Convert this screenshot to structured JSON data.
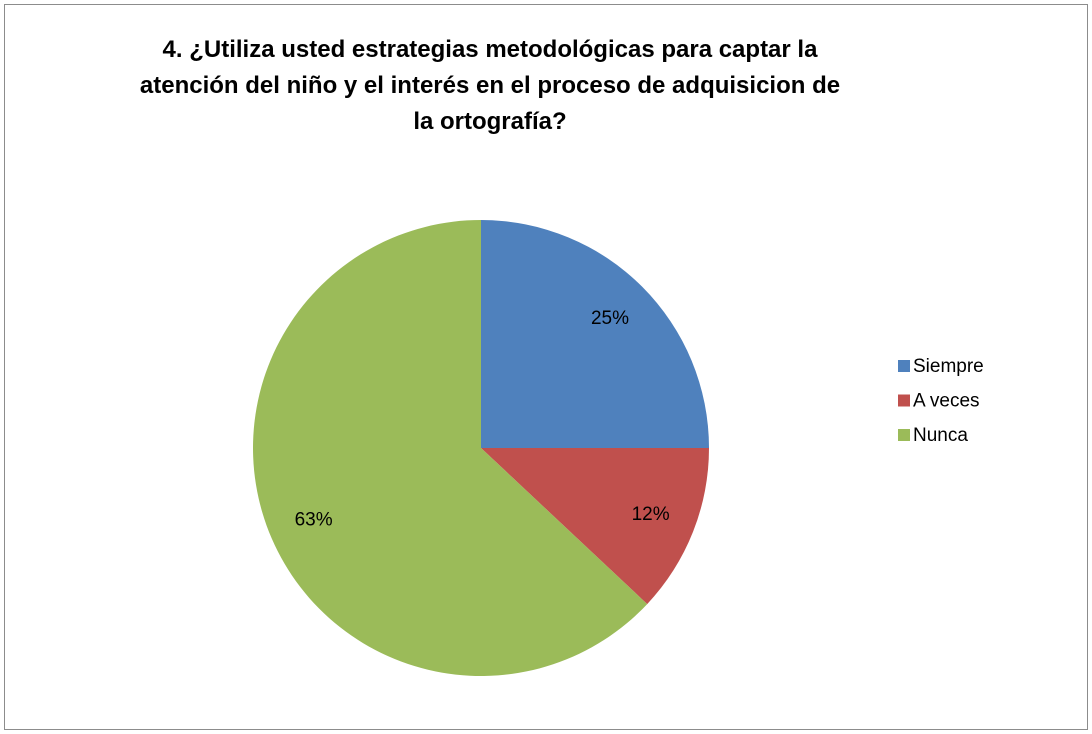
{
  "chart_data": {
    "type": "pie",
    "title": "4. ¿Utiliza usted estrategias metodológicas para captar la atención del niño y el interés en el proceso de adquisicion de la ortografía?",
    "categories": [
      "Siempre",
      "A veces",
      "Nunca"
    ],
    "values": [
      25,
      12,
      63
    ],
    "value_labels": [
      "25%",
      "12%",
      "63%"
    ],
    "colors": [
      "#4f81bd",
      "#c0504d",
      "#9bbb59"
    ],
    "legend": "right"
  }
}
